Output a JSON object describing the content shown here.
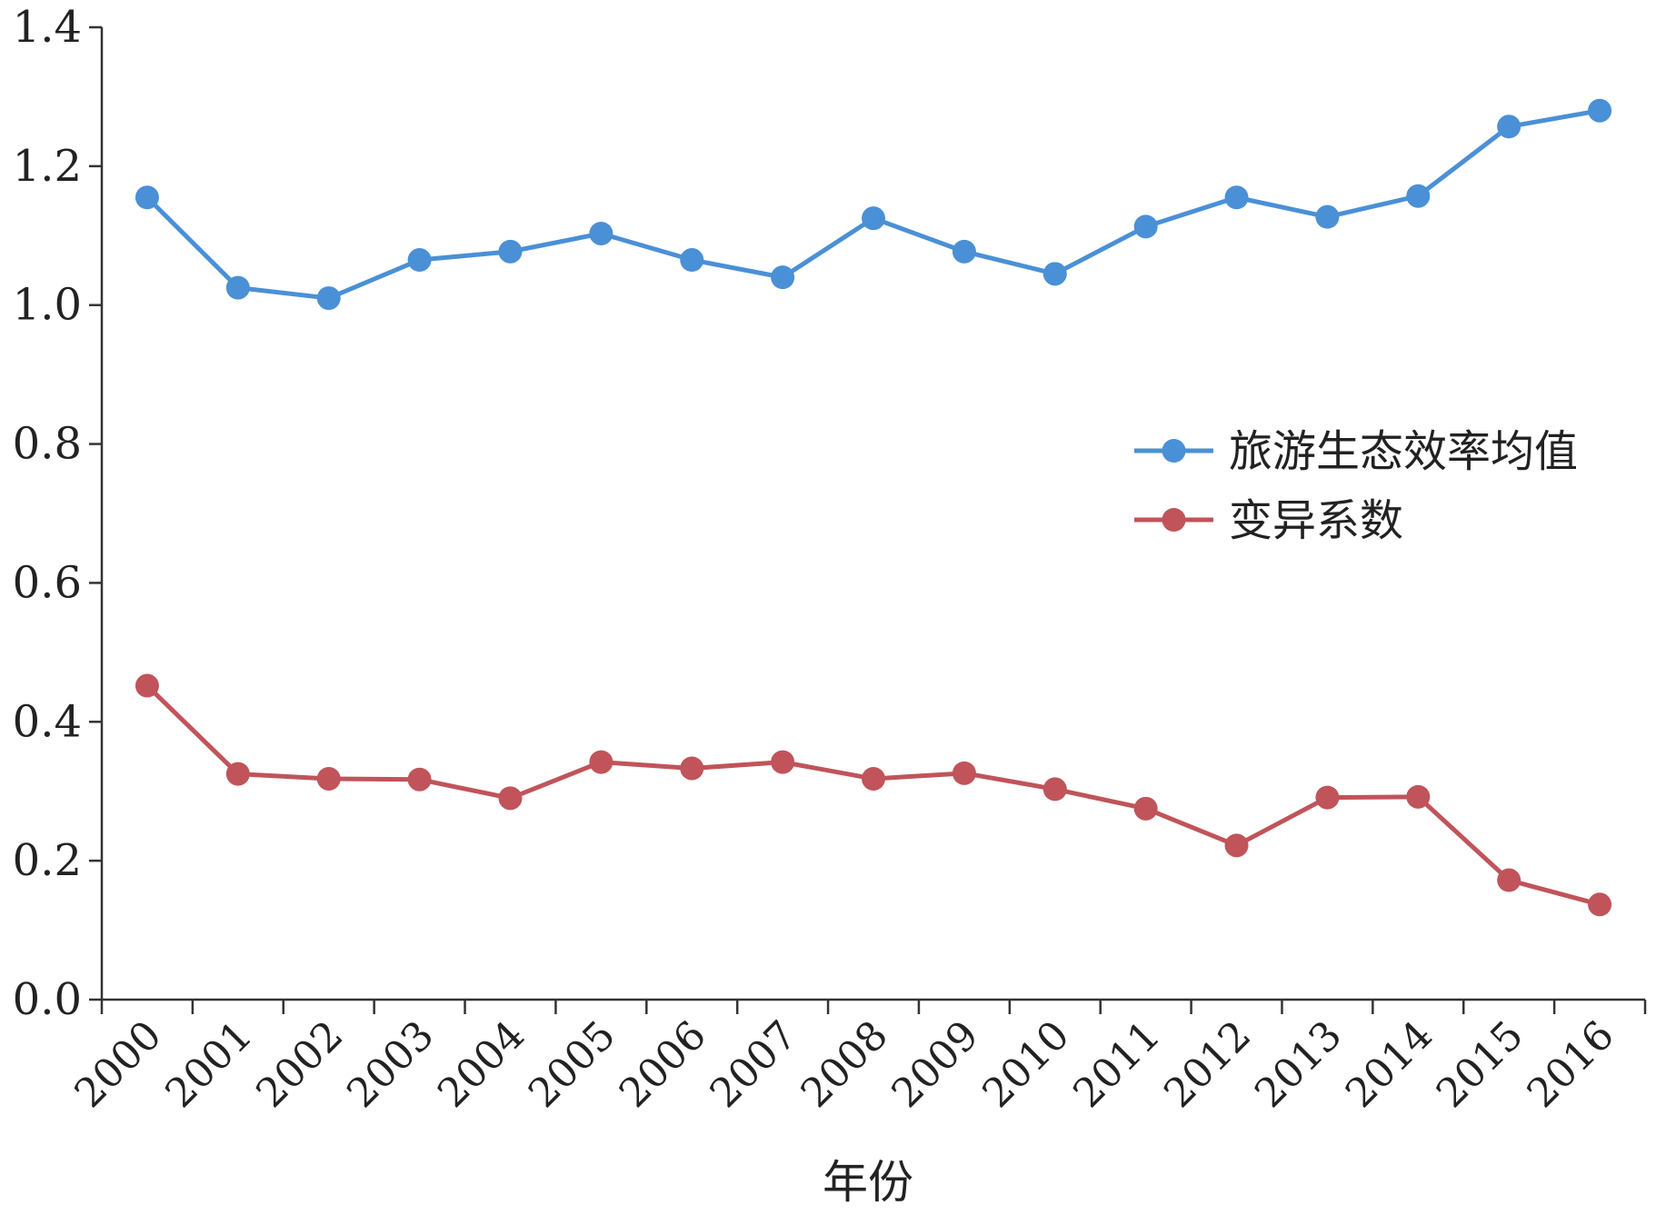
{
  "chart_data": {
    "type": "line",
    "title": "",
    "xlabel": "年份",
    "ylabel": "",
    "categories": [
      "2000",
      "2001",
      "2002",
      "2003",
      "2004",
      "2005",
      "2006",
      "2007",
      "2008",
      "2009",
      "2010",
      "2011",
      "2012",
      "2013",
      "2014",
      "2015",
      "2016"
    ],
    "ylim": [
      0,
      1.4
    ],
    "yticks": [
      "0.0",
      "0.2",
      "0.4",
      "0.6",
      "0.8",
      "1.0",
      "1.2",
      "1.4"
    ],
    "grid": false,
    "legend_position": "right",
    "series": [
      {
        "name": "旅游生态效率均值",
        "color": "#4a90d6",
        "values": [
          1.155,
          1.025,
          1.01,
          1.065,
          1.077,
          1.103,
          1.065,
          1.04,
          1.125,
          1.077,
          1.045,
          1.113,
          1.155,
          1.127,
          1.157,
          1.257,
          1.28
        ]
      },
      {
        "name": "变异系数",
        "color": "#c0545a",
        "values": [
          0.452,
          0.325,
          0.318,
          0.317,
          0.29,
          0.342,
          0.333,
          0.342,
          0.318,
          0.326,
          0.303,
          0.275,
          0.222,
          0.291,
          0.292,
          0.172,
          0.137
        ]
      }
    ]
  }
}
